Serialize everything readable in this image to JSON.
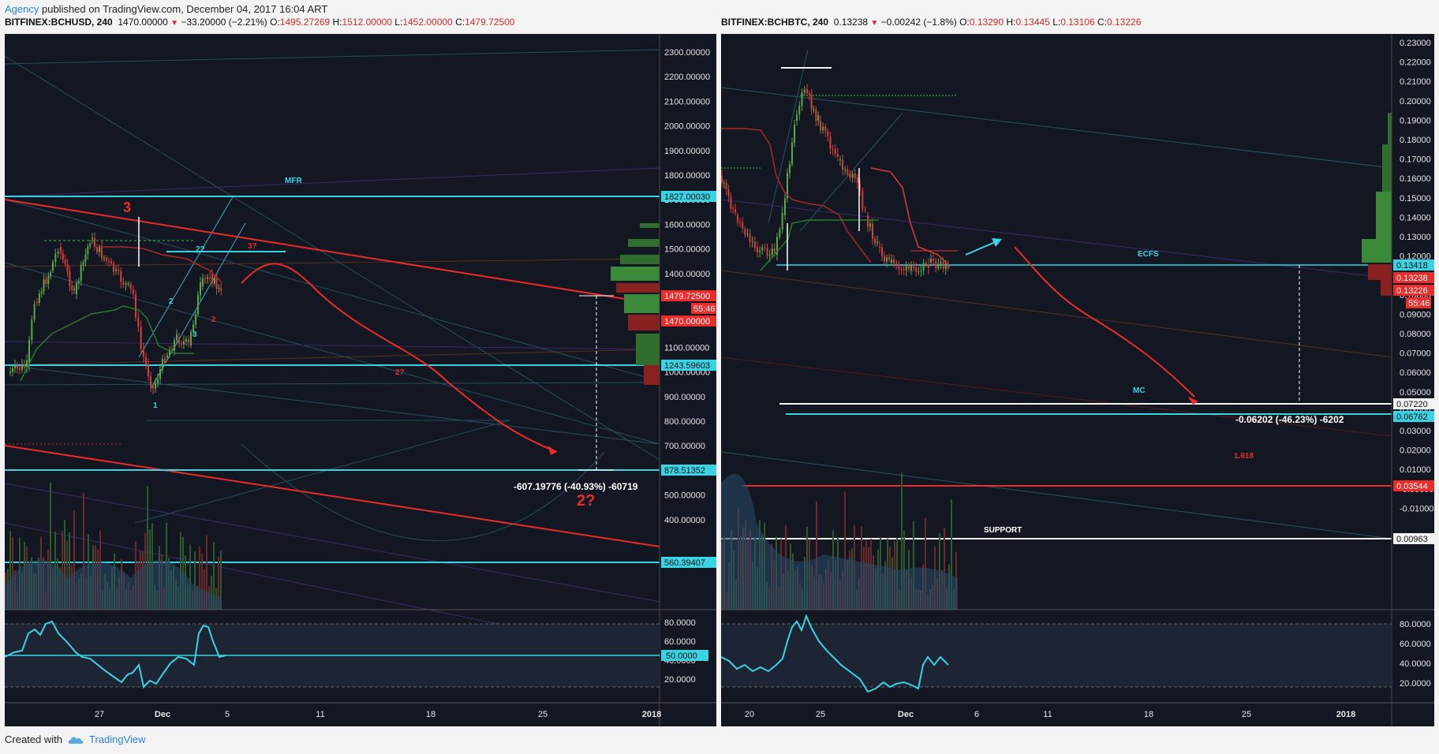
{
  "header": {
    "user": "Agency",
    "text": " published on TradingView.com, December 04, 2017 16:04 ART"
  },
  "footer": {
    "created": "Created with",
    "brand": "TradingView"
  },
  "colors": {
    "bg": "#131722",
    "cyan": "#39d3e4",
    "red": "#ec2b2b",
    "up": "#5aa84a",
    "down": "#d83c3c",
    "white": "#f2f2f2"
  },
  "panels": [
    {
      "title": {
        "symbol": "BITFINEX:BCHUSD, 240",
        "last": "1470.00000",
        "change": "−33.20000 (−2.21%)",
        "o_label": "O:",
        "o": "1495.27269",
        "h_label": "H:",
        "h": "1512.00000",
        "l_label": "L:",
        "l": "1452.00000",
        "c_label": "C:",
        "c": "1479.72500"
      },
      "price_ticks": [
        "2300.00000",
        "2200.00000",
        "2100.00000",
        "2000.00000",
        "1900.00000",
        "1800.00000",
        "1700.00000",
        "1600.00000",
        "1500.00000",
        "1400.00000",
        "1300.00000",
        "1200.00000",
        "1100.00000",
        "1000.00000",
        "900.00000",
        "800.00000",
        "700.00000",
        "600.00000",
        "500.00000",
        "400.00000"
      ],
      "osc_ticks": [
        "80.0000",
        "60.0000",
        "40.0000",
        "20.0000"
      ],
      "time_ticks": [
        "27",
        "Dec",
        "5",
        "11",
        "18",
        "25",
        "2018"
      ],
      "price_tags": [
        "1827.00030",
        "1479.72500",
        "55:46",
        "1470.00000",
        "1243.59603",
        "878.51352",
        "560.39407"
      ],
      "osc_tag": "50.0000",
      "annotations": {
        "mfr": "MFR",
        "wave3": "3",
        "w22": "2?",
        "w37": "3?",
        "w2": "2",
        "w2r": "2",
        "w3": "3",
        "w1": "1",
        "w2q": "2?",
        "big2q": "2?",
        "measure": "-607.19776 (-40.93%) -60719"
      }
    },
    {
      "title": {
        "symbol": "BITFINEX:BCHBTC, 240",
        "last": "0.13238",
        "change": "−0.00242 (−1.8%)",
        "o_label": "O:",
        "o": "0.13290",
        "h_label": "H:",
        "h": "0.13445",
        "l_label": "L:",
        "l": "0.13106",
        "c_label": "C:",
        "c": "0.13226"
      },
      "price_ticks": [
        "0.23000",
        "0.22000",
        "0.21000",
        "0.20000",
        "0.19000",
        "0.18000",
        "0.17000",
        "0.16000",
        "0.15000",
        "0.14000",
        "0.13000",
        "0.12000",
        "0.11000",
        "0.10000",
        "0.09000",
        "0.08000",
        "0.07000",
        "0.06000",
        "0.05000",
        "0.04000",
        "0.03000",
        "0.02000",
        "0.01000",
        "-0.00000",
        "-0.01000"
      ],
      "osc_ticks": [
        "80.0000",
        "60.0000",
        "40.0000",
        "20.0000"
      ],
      "time_ticks": [
        "20",
        "25",
        "Dec",
        "6",
        "11",
        "18",
        "25",
        "2018"
      ],
      "price_tags": [
        "0.13418",
        "0.13238",
        "0.13226",
        "55:46",
        "0.07220",
        "0.06762",
        "0.03544",
        "0.00963"
      ],
      "annotations": {
        "ecfs": "ECFS",
        "mc": "MC",
        "fib": "1.618",
        "support": "SUPPORT",
        "measure": "-0.06202 (-46.23%) -6202"
      }
    }
  ],
  "chart_data": [
    {
      "type": "candlestick",
      "title": "BITFINEX:BCHUSD, 240",
      "ylim": [
        400,
        2300
      ],
      "x": [
        "27",
        "Dec",
        "5",
        "11",
        "18",
        "25",
        "2018"
      ],
      "horizontal_levels": [
        1827.0003,
        1243.59603,
        878.51352,
        560.39407
      ],
      "last_price": 1470.0,
      "close": 1479.725,
      "measured_move": {
        "value": -607.19776,
        "percent": -40.93
      },
      "oscillator": {
        "ylim": [
          20,
          80
        ],
        "level": 50.0
      }
    },
    {
      "type": "candlestick",
      "title": "BITFINEX:BCHBTC, 240",
      "ylim": [
        -0.01,
        0.23
      ],
      "x": [
        "20",
        "25",
        "Dec",
        "6",
        "11",
        "18",
        "25",
        "2018"
      ],
      "horizontal_levels": [
        0.13418,
        0.0722,
        0.06762,
        0.03544,
        0.00963
      ],
      "last_price": 0.13238,
      "close": 0.13226,
      "measured_move": {
        "value": -0.06202,
        "percent": -46.23
      },
      "oscillator": {
        "ylim": [
          20,
          80
        ]
      }
    }
  ]
}
